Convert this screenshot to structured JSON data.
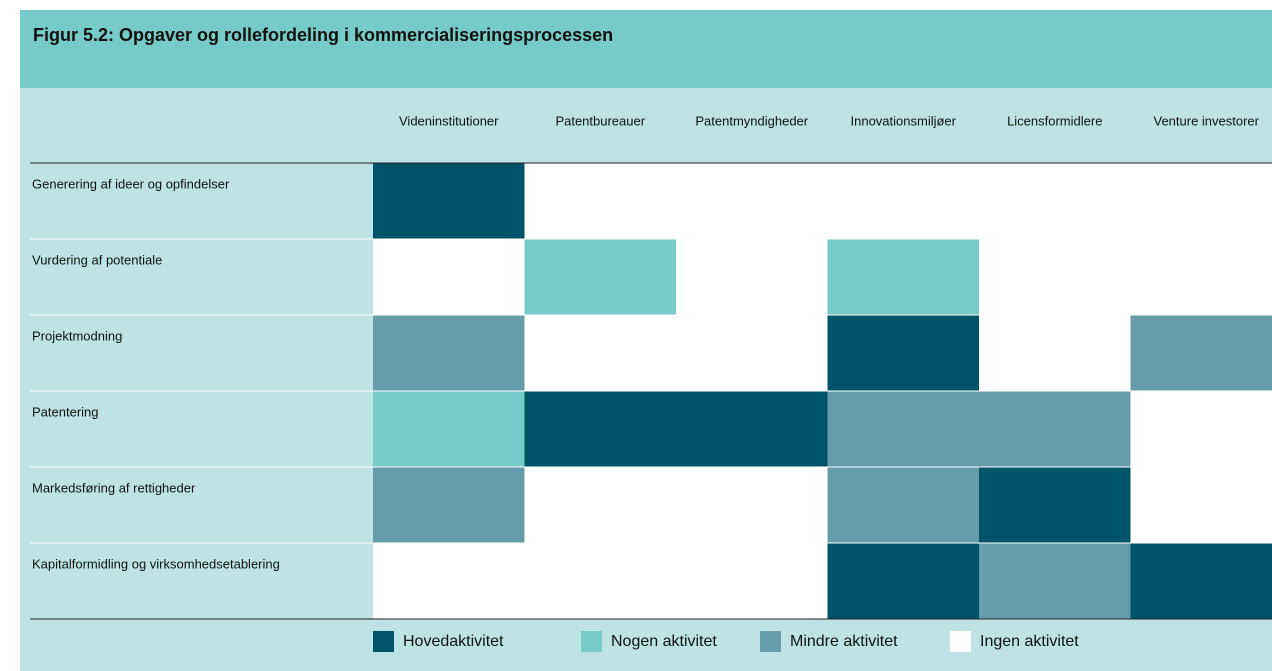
{
  "title": "Figur 5.2: Opgaver og rollefordeling i kommercialiseringsprocessen",
  "columns": [
    "Videninstitutioner",
    "Patentbureauer",
    "Patentmyndigheder",
    "Innovationsmiljøer",
    "Licensformidlere",
    "Venture investorer"
  ],
  "legend": [
    {
      "label": "Hovedaktivitet",
      "color": "#00546a"
    },
    {
      "label": "Nogen aktivitet",
      "color": "#76cbc9"
    },
    {
      "label": "Mindre aktivitet",
      "color": "#669caa"
    },
    {
      "label": "Ingen aktivitet",
      "color": "#ffffff"
    }
  ],
  "rows": [
    {
      "label": "Generering af ideer og opfindelser",
      "cells": [
        0,
        3,
        3,
        3,
        3,
        3
      ]
    },
    {
      "label": "Vurdering af  potentiale",
      "cells": [
        3,
        1,
        3,
        1,
        3,
        3
      ]
    },
    {
      "label": "Projektmodning",
      "cells": [
        2,
        3,
        3,
        0,
        3,
        2
      ]
    },
    {
      "label": "Patentering",
      "cells": [
        1,
        0,
        0,
        2,
        2,
        3
      ]
    },
    {
      "label": "Markedsføring af rettigheder",
      "cells": [
        2,
        3,
        3,
        2,
        0,
        3
      ]
    },
    {
      "label": "Kapitalformidling og virksomhedsetablering",
      "cells": [
        3,
        3,
        3,
        0,
        2,
        0
      ]
    }
  ]
}
